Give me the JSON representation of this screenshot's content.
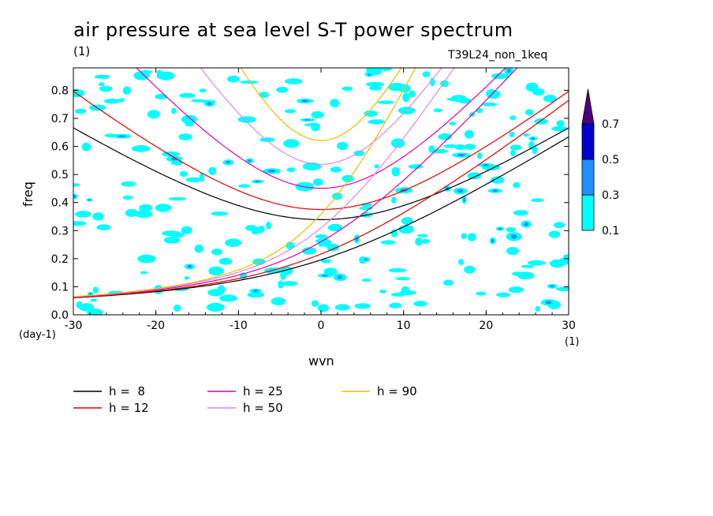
{
  "header": {
    "title": "air pressure at sea level S-T power spectrum",
    "units_top": "(1)",
    "run_name": "T39L24_non_1keq"
  },
  "axes": {
    "x_unit": "(1)",
    "y_unit": "(day-1)"
  },
  "chart_data": {
    "type": "heatmap",
    "title": "air pressure at sea level S-T power spectrum",
    "xlabel": "wvn",
    "ylabel": "freq",
    "xlim": [
      -30,
      30
    ],
    "ylim": [
      0.0,
      0.88
    ],
    "x_ticks": [
      "-30",
      "-20",
      "-10",
      "0",
      "10",
      "20",
      "30"
    ],
    "x_tick_values": [
      -30,
      -20,
      -10,
      0,
      10,
      20,
      30
    ],
    "y_ticks": [
      "0.0",
      "0.1",
      "0.2",
      "0.3",
      "0.4",
      "0.5",
      "0.6",
      "0.7",
      "0.8"
    ],
    "y_tick_values": [
      0.0,
      0.1,
      0.2,
      0.3,
      0.4,
      0.5,
      0.6,
      0.7,
      0.8
    ],
    "colorbar": {
      "levels": [
        "0.1",
        "0.3",
        "0.5",
        "0.7"
      ],
      "level_values": [
        0.1,
        0.3,
        0.5,
        0.7
      ],
      "colors": [
        "#00ffff",
        "#1e90ff",
        "#0000cd",
        "#4b0082"
      ]
    },
    "dispersion_curves": [
      {
        "label": "h =  8",
        "h": 8,
        "color": "#000000"
      },
      {
        "label": "h = 12",
        "h": 12,
        "color": "#dd0000"
      },
      {
        "label": "h = 25",
        "h": 25,
        "color": "#dd00aa"
      },
      {
        "label": "h = 50",
        "h": 50,
        "color": "#dd88dd"
      },
      {
        "label": "h = 90",
        "h": 90,
        "color": "#eebb00"
      }
    ]
  }
}
